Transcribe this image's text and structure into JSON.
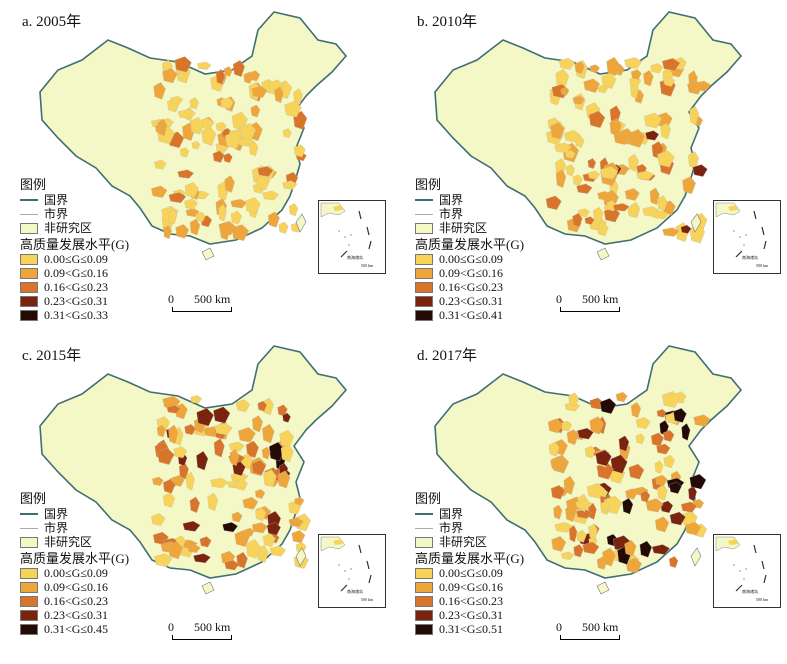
{
  "panels": [
    {
      "id": "a",
      "title": "a. 2005年",
      "legend": {
        "heading": "图例",
        "national_border": "国界",
        "city_border": "市界",
        "non_study_area": "非研究区",
        "level_title": "高质量发展水平(G)",
        "classes": [
          "0.00≤G≤0.09",
          "0.09<G≤0.16",
          "0.16<G≤0.23",
          "0.23<G≤0.31",
          "0.31<G≤0.33"
        ]
      },
      "scale": {
        "zero": "0",
        "label": "500 km"
      },
      "inset_label": "南海诸岛",
      "inset_scale": "500 km",
      "intensity": 0.15
    },
    {
      "id": "b",
      "title": "b. 2010年",
      "legend": {
        "heading": "图例",
        "national_border": "国界",
        "city_border": "市界",
        "non_study_area": "非研究区",
        "level_title": "高质量发展水平(G)",
        "classes": [
          "0.00≤G≤0.09",
          "0.09<G≤0.16",
          "0.16<G≤0.23",
          "0.23<G≤0.31",
          "0.31<G≤0.41"
        ]
      },
      "scale": {
        "zero": "0",
        "label": "500 km"
      },
      "inset_label": "南海诸岛",
      "inset_scale": "500 km",
      "intensity": 0.3
    },
    {
      "id": "c",
      "title": "c. 2015年",
      "legend": {
        "heading": "图例",
        "national_border": "国界",
        "city_border": "市界",
        "non_study_area": "非研究区",
        "level_title": "高质量发展水平(G)",
        "classes": [
          "0.00≤G≤0.09",
          "0.09<G≤0.16",
          "0.16<G≤0.23",
          "0.23<G≤0.31",
          "0.31<G≤0.45"
        ]
      },
      "scale": {
        "zero": "0",
        "label": "500 km"
      },
      "inset_label": "南海诸岛",
      "inset_scale": "500 km",
      "intensity": 0.6
    },
    {
      "id": "d",
      "title": "d. 2017年",
      "legend": {
        "heading": "图例",
        "national_border": "国界",
        "city_border": "市界",
        "non_study_area": "非研究区",
        "level_title": "高质量发展水平(G)",
        "classes": [
          "0.00≤G≤0.09",
          "0.09<G≤0.16",
          "0.16<G≤0.23",
          "0.23<G≤0.31",
          "0.31<G≤0.51"
        ]
      },
      "scale": {
        "zero": "0",
        "label": "500 km"
      },
      "inset_label": "南海诸岛",
      "inset_scale": "500 km",
      "intensity": 0.75
    }
  ],
  "colors": {
    "non_study": "#f4f7c6",
    "classes": [
      "#f7d35a",
      "#eea63a",
      "#d9752a",
      "#7a2410",
      "#240a04"
    ],
    "national_border": "#3f6f73",
    "city_border": "#bbbbbb"
  }
}
